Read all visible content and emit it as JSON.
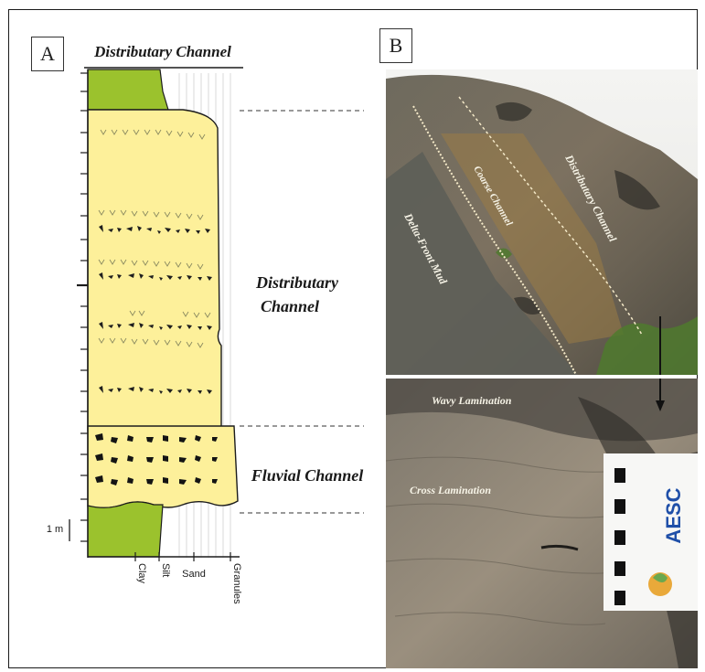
{
  "panel_a": {
    "letter": "A",
    "header_title": "Distributary Channel",
    "units": [
      {
        "label_line1": "Distributary",
        "label_line2": "Channel"
      },
      {
        "label": "Fluvial Channel"
      }
    ],
    "scale_label": "1 m",
    "grain_axis": [
      "Clay",
      "Silt",
      "Sand",
      "Granules"
    ],
    "colors": {
      "mud": "#9bc22d",
      "sand": "#fdf09a",
      "outline": "#1c1c1c"
    }
  },
  "panel_b": {
    "letter": "B",
    "top_photo_labels": [
      "Delta-Front Mud",
      "Coarse Channel",
      "Distributary Channel"
    ],
    "bottom_photo_labels": [
      "Wavy Lamination",
      "Cross Lamination"
    ],
    "sign_text": "AESC"
  }
}
